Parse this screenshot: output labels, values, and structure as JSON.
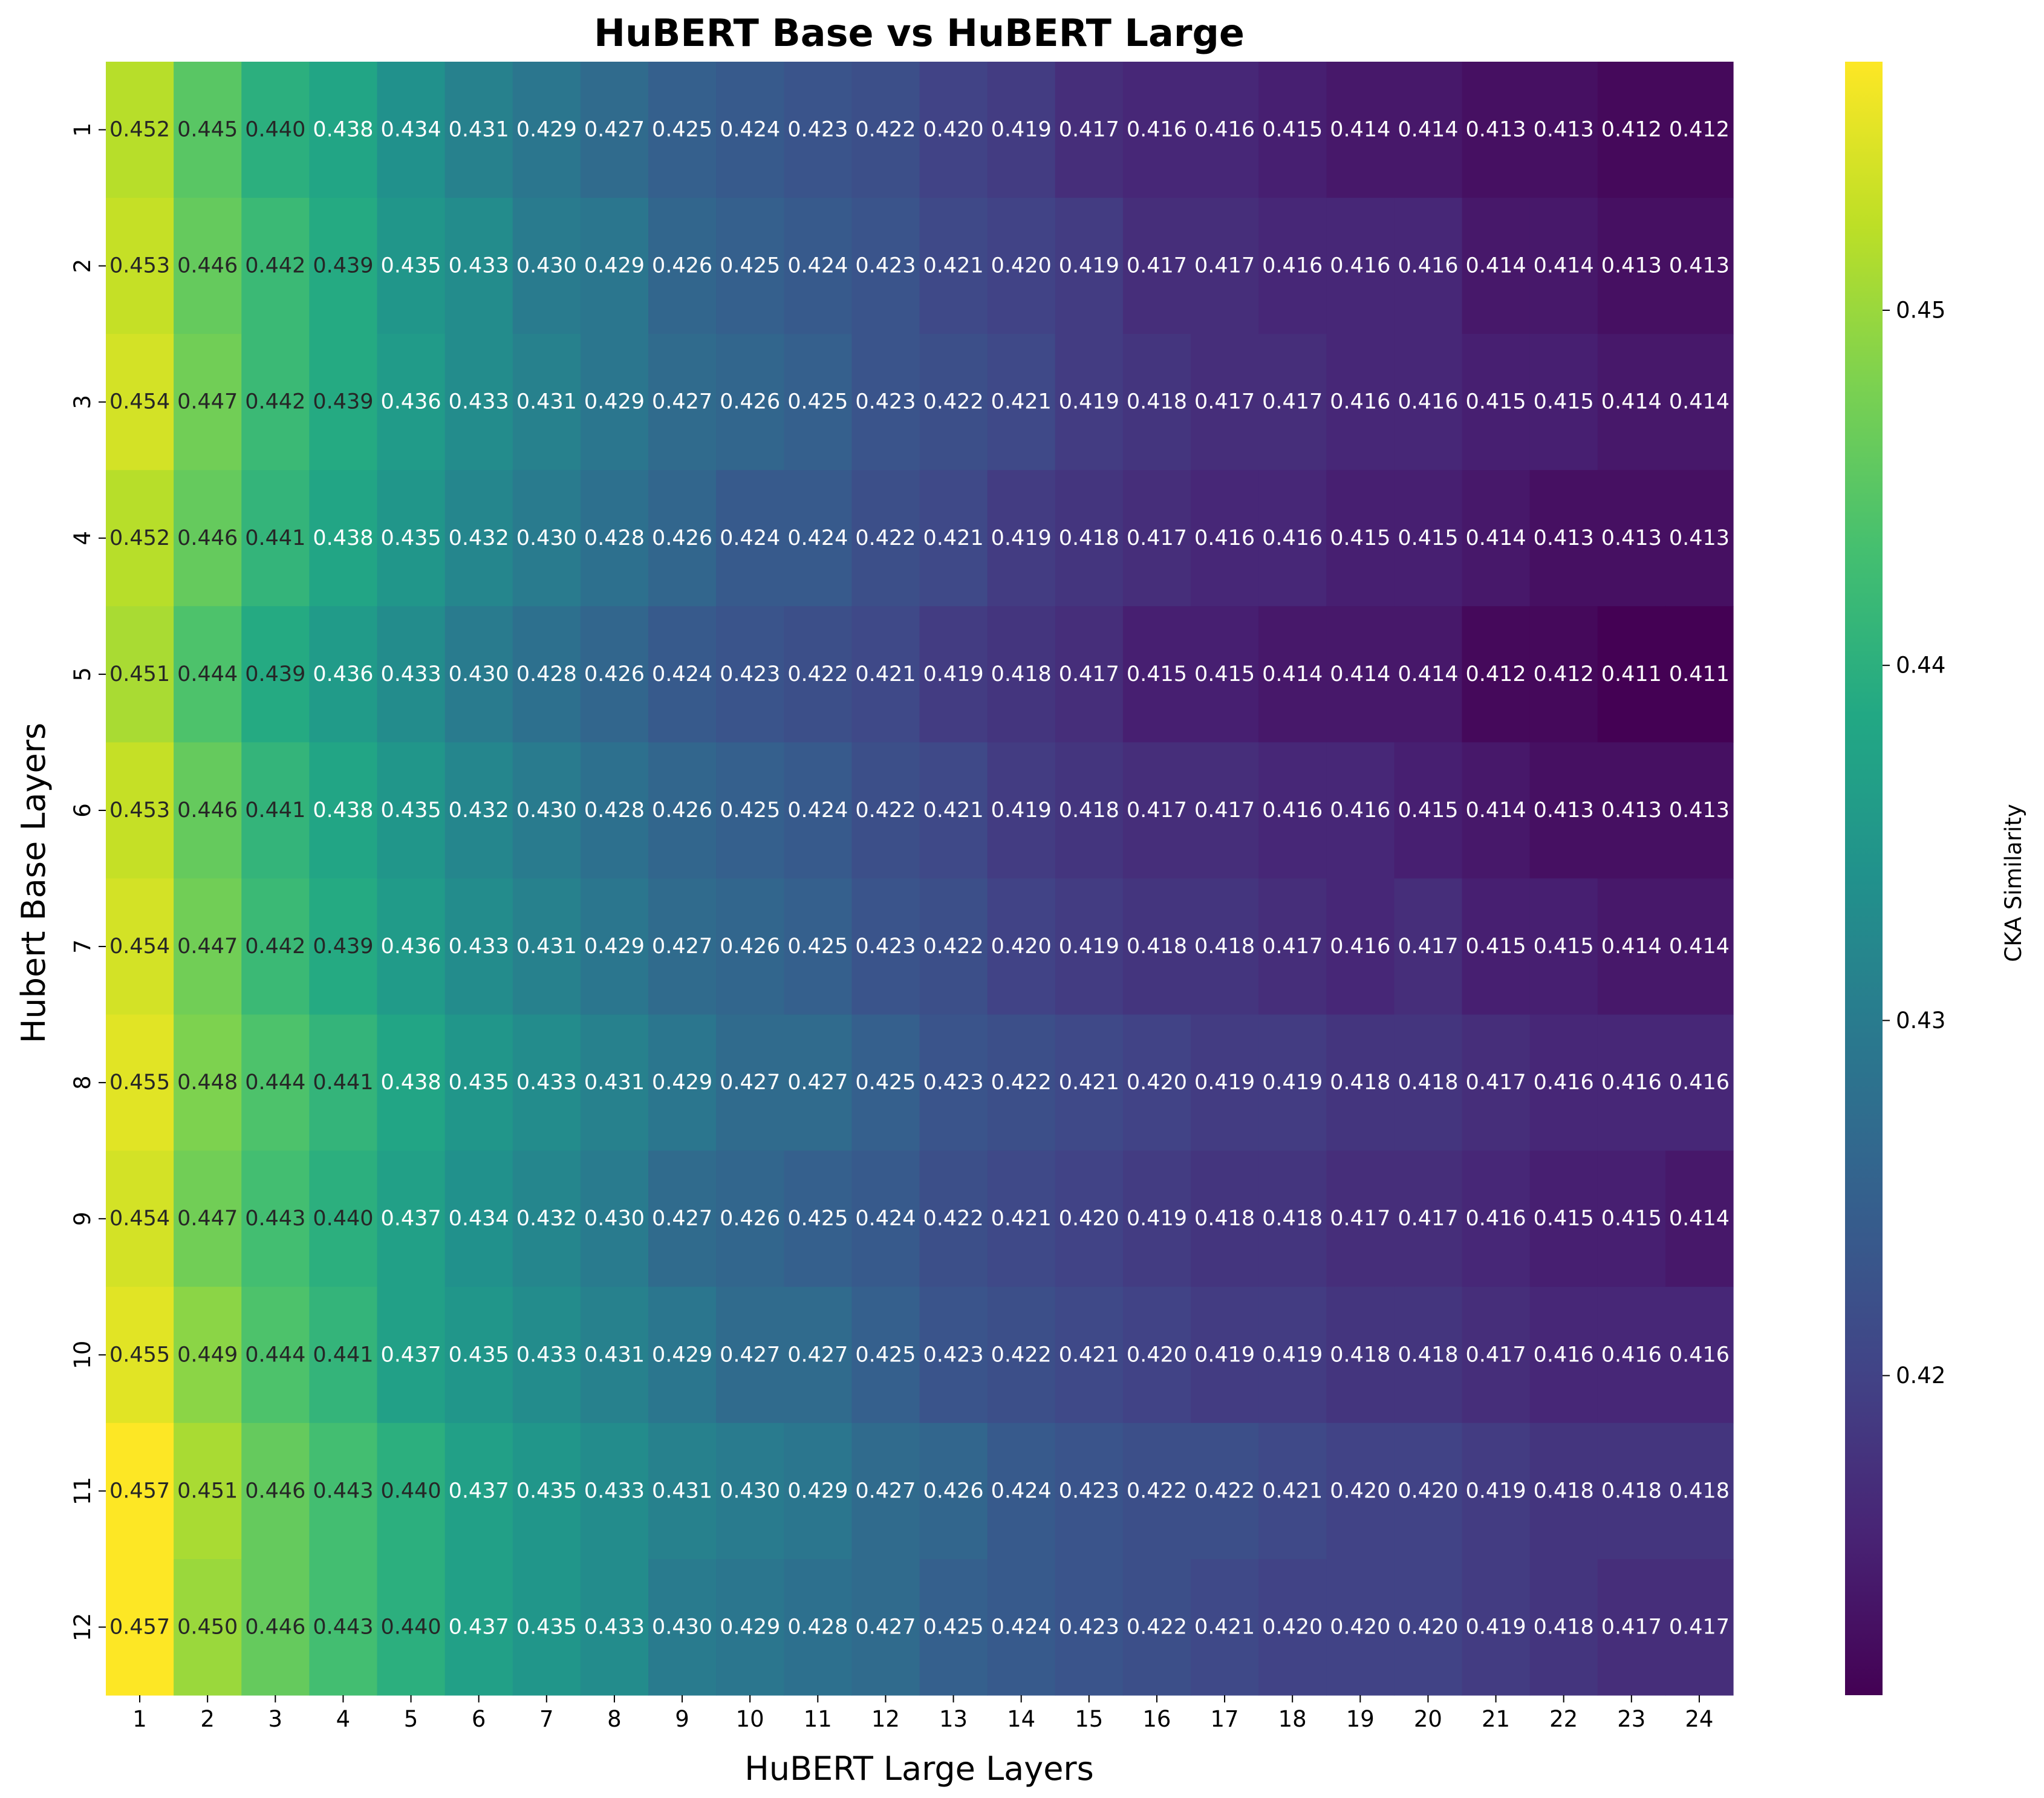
{
  "chart_data": {
    "type": "heatmap",
    "title": "HuBERT Base vs HuBERT Large",
    "xlabel": "HuBERT Large Layers",
    "ylabel": "Hubert Base Layers",
    "x_categories": [
      "1",
      "2",
      "3",
      "4",
      "5",
      "6",
      "7",
      "8",
      "9",
      "10",
      "11",
      "12",
      "13",
      "14",
      "15",
      "16",
      "17",
      "18",
      "19",
      "20",
      "21",
      "22",
      "23",
      "24"
    ],
    "y_categories": [
      "1",
      "2",
      "3",
      "4",
      "5",
      "6",
      "7",
      "8",
      "9",
      "10",
      "11",
      "12"
    ],
    "values": [
      [
        0.452,
        0.445,
        0.44,
        0.438,
        0.434,
        0.431,
        0.429,
        0.427,
        0.425,
        0.424,
        0.423,
        0.422,
        0.42,
        0.419,
        0.417,
        0.416,
        0.416,
        0.415,
        0.414,
        0.414,
        0.413,
        0.413,
        0.412,
        0.412
      ],
      [
        0.453,
        0.446,
        0.442,
        0.439,
        0.435,
        0.433,
        0.43,
        0.429,
        0.426,
        0.425,
        0.424,
        0.423,
        0.421,
        0.42,
        0.419,
        0.417,
        0.417,
        0.416,
        0.416,
        0.416,
        0.414,
        0.414,
        0.413,
        0.413
      ],
      [
        0.454,
        0.447,
        0.442,
        0.439,
        0.436,
        0.433,
        0.431,
        0.429,
        0.427,
        0.426,
        0.425,
        0.423,
        0.422,
        0.421,
        0.419,
        0.418,
        0.417,
        0.417,
        0.416,
        0.416,
        0.415,
        0.415,
        0.414,
        0.414
      ],
      [
        0.452,
        0.446,
        0.441,
        0.438,
        0.435,
        0.432,
        0.43,
        0.428,
        0.426,
        0.424,
        0.424,
        0.422,
        0.421,
        0.419,
        0.418,
        0.417,
        0.416,
        0.416,
        0.415,
        0.415,
        0.414,
        0.413,
        0.413,
        0.413
      ],
      [
        0.451,
        0.444,
        0.439,
        0.436,
        0.433,
        0.43,
        0.428,
        0.426,
        0.424,
        0.423,
        0.422,
        0.421,
        0.419,
        0.418,
        0.417,
        0.415,
        0.415,
        0.414,
        0.414,
        0.414,
        0.412,
        0.412,
        0.411,
        0.411
      ],
      [
        0.453,
        0.446,
        0.441,
        0.438,
        0.435,
        0.432,
        0.43,
        0.428,
        0.426,
        0.425,
        0.424,
        0.422,
        0.421,
        0.419,
        0.418,
        0.417,
        0.417,
        0.416,
        0.416,
        0.415,
        0.414,
        0.413,
        0.413,
        0.413
      ],
      [
        0.454,
        0.447,
        0.442,
        0.439,
        0.436,
        0.433,
        0.431,
        0.429,
        0.427,
        0.426,
        0.425,
        0.423,
        0.422,
        0.42,
        0.419,
        0.418,
        0.418,
        0.417,
        0.416,
        0.417,
        0.415,
        0.415,
        0.414,
        0.414
      ],
      [
        0.455,
        0.448,
        0.444,
        0.441,
        0.438,
        0.435,
        0.433,
        0.431,
        0.429,
        0.427,
        0.427,
        0.425,
        0.423,
        0.422,
        0.421,
        0.42,
        0.419,
        0.419,
        0.418,
        0.418,
        0.417,
        0.416,
        0.416,
        0.416
      ],
      [
        0.454,
        0.447,
        0.443,
        0.44,
        0.437,
        0.434,
        0.432,
        0.43,
        0.427,
        0.426,
        0.425,
        0.424,
        0.422,
        0.421,
        0.42,
        0.419,
        0.418,
        0.418,
        0.417,
        0.417,
        0.416,
        0.415,
        0.415,
        0.414
      ],
      [
        0.455,
        0.449,
        0.444,
        0.441,
        0.437,
        0.435,
        0.433,
        0.431,
        0.429,
        0.427,
        0.427,
        0.425,
        0.423,
        0.422,
        0.421,
        0.42,
        0.419,
        0.419,
        0.418,
        0.418,
        0.417,
        0.416,
        0.416,
        0.416
      ],
      [
        0.457,
        0.451,
        0.446,
        0.443,
        0.44,
        0.437,
        0.435,
        0.433,
        0.431,
        0.43,
        0.429,
        0.427,
        0.426,
        0.424,
        0.423,
        0.422,
        0.422,
        0.421,
        0.42,
        0.42,
        0.419,
        0.418,
        0.418,
        0.418
      ],
      [
        0.457,
        0.45,
        0.446,
        0.443,
        0.44,
        0.437,
        0.435,
        0.433,
        0.43,
        0.429,
        0.428,
        0.427,
        0.425,
        0.424,
        0.423,
        0.422,
        0.421,
        0.42,
        0.42,
        0.42,
        0.419,
        0.418,
        0.417,
        0.417
      ]
    ],
    "value_format": "3 decimals",
    "colormap": "viridis",
    "vmin": 0.411,
    "vmax": 0.457,
    "colorbar": {
      "label": "CKA Similarity",
      "ticks": [
        "0.42",
        "0.43",
        "0.44",
        "0.45"
      ],
      "tick_values": [
        0.42,
        0.43,
        0.44,
        0.45
      ]
    }
  }
}
